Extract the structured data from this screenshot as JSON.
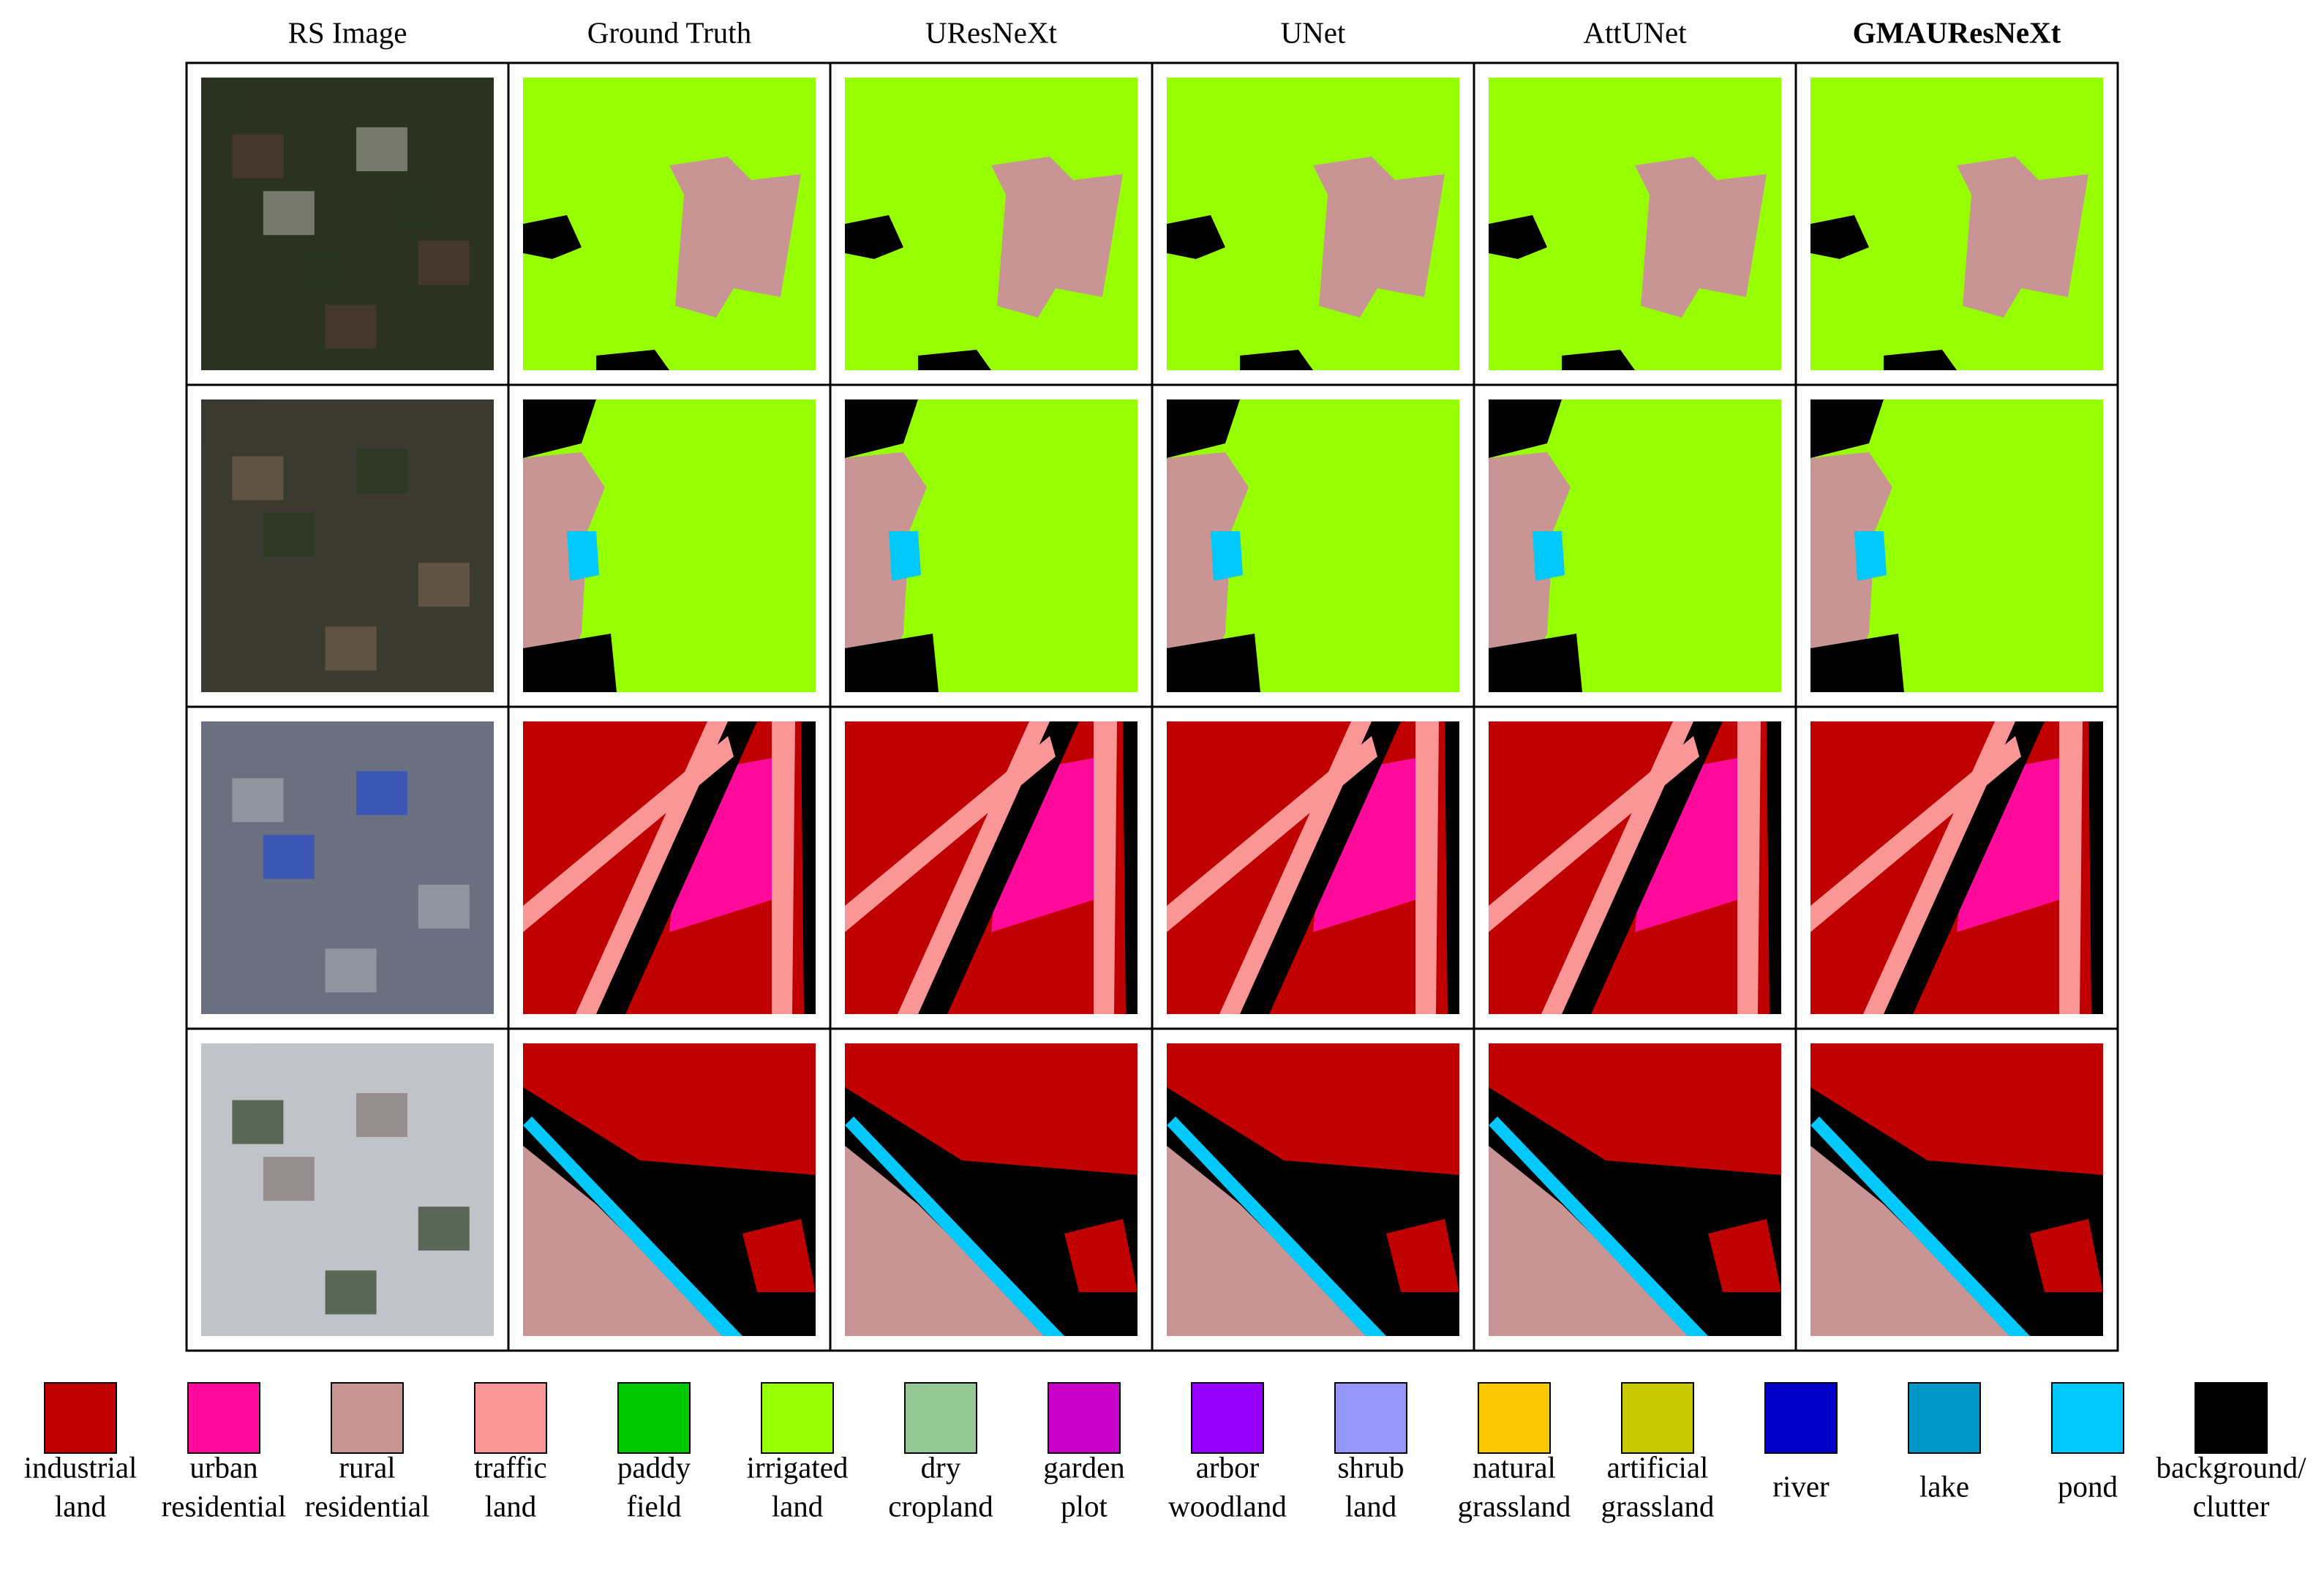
{
  "columns": [
    {
      "label": "RS Image"
    },
    {
      "label": "Ground Truth"
    },
    {
      "label": "UResNeXt"
    },
    {
      "label": "UNet"
    },
    {
      "label": "AttUNet"
    },
    {
      "label": "GMAUResNeXt",
      "bold": true
    }
  ],
  "legend": [
    {
      "lines": [
        "industrial",
        "land"
      ],
      "color": "#c00000"
    },
    {
      "lines": [
        "urban",
        "residential"
      ],
      "color": "#ff0a9a"
    },
    {
      "lines": [
        "rural",
        "residential"
      ],
      "color": "#c89594"
    },
    {
      "lines": [
        "traffic",
        "land"
      ],
      "color": "#fa9696"
    },
    {
      "lines": [
        "paddy",
        "field"
      ],
      "color": "#00c800"
    },
    {
      "lines": [
        "irrigated",
        "land"
      ],
      "color": "#96ff00"
    },
    {
      "lines": [
        "dry",
        "cropland"
      ],
      "color": "#96c896"
    },
    {
      "lines": [
        "garden",
        "plot"
      ],
      "color": "#c800c8"
    },
    {
      "lines": [
        "arbor",
        "woodland"
      ],
      "color": "#9600fa"
    },
    {
      "lines": [
        "shrub",
        "land"
      ],
      "color": "#9696fa"
    },
    {
      "lines": [
        "natural",
        "grassland"
      ],
      "color": "#fac800"
    },
    {
      "lines": [
        "artificial",
        "grassland"
      ],
      "color": "#c8c800"
    },
    {
      "lines": [
        "river"
      ],
      "color": "#0000c8"
    },
    {
      "lines": [
        "lake"
      ],
      "color": "#0096c8"
    },
    {
      "lines": [
        "pond"
      ],
      "color": "#00c8fa"
    },
    {
      "lines": [
        "background/",
        "clutter"
      ],
      "color": "#000000"
    }
  ]
}
